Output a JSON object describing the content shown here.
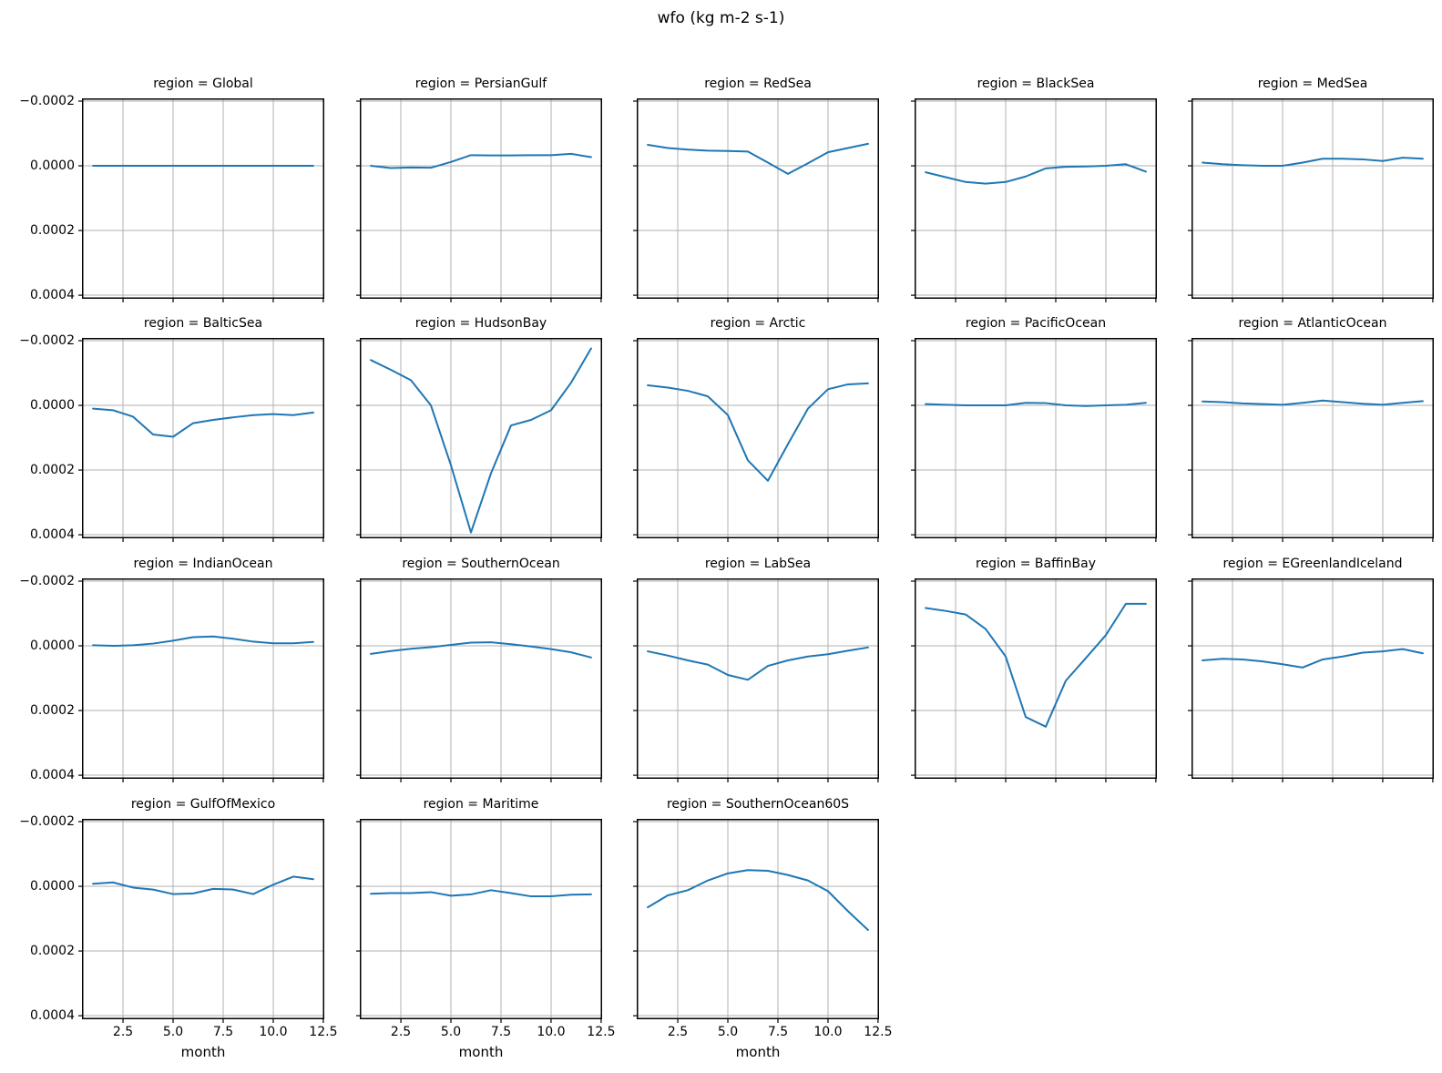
{
  "figure": {
    "title": "wfo (kg m-2 s-1)"
  },
  "chart_data": {
    "type": "line",
    "title": "wfo (kg m-2 s-1)",
    "facet_by": "region",
    "xlabel": "month",
    "x": [
      1,
      2,
      3,
      4,
      5,
      6,
      7,
      8,
      9,
      10,
      11,
      12
    ],
    "xlim": [
      0.45,
      12.55
    ],
    "xticks": [
      2.5,
      5.0,
      7.5,
      10.0,
      12.5
    ],
    "xtick_labels": [
      "2.5",
      "5.0",
      "7.5",
      "10.0",
      "12.5"
    ],
    "ylim": {
      "top": -0.0002085,
      "bottom": 0.000411
    },
    "y_axis_inverted": true,
    "yticks": [
      -0.0002,
      0.0,
      0.0002,
      0.0004
    ],
    "ytick_labels": [
      "−0.0002",
      "0.0000",
      "0.0002",
      "0.0004"
    ],
    "grid": true,
    "legend": "none",
    "line_color": "#1f77b4",
    "grid_color": "#b0b0b0",
    "grid_layout": {
      "rows": 4,
      "cols": 5,
      "facets_in_last_row": 3
    },
    "facets": [
      {
        "region": "Global",
        "title": "region = Global",
        "values": [
          0,
          0,
          0,
          0,
          0,
          0,
          0,
          0,
          0,
          0,
          0,
          0
        ]
      },
      {
        "region": "PersianGulf",
        "title": "region = PersianGulf",
        "values": [
          0,
          7e-06,
          5e-06,
          6e-06,
          -1.2e-05,
          -3.3e-05,
          -3.2e-05,
          -3.2e-05,
          -3.3e-05,
          -3.3e-05,
          -3.7e-05,
          -2.7e-05
        ]
      },
      {
        "region": "RedSea",
        "title": "region = RedSea",
        "values": [
          -6.5e-05,
          -5.5e-05,
          -5e-05,
          -4.7e-05,
          -4.6e-05,
          -4.4e-05,
          -1e-05,
          2.5e-05,
          -8e-06,
          -4.2e-05,
          -5.5e-05,
          -6.8e-05
        ]
      },
      {
        "region": "BlackSea",
        "title": "region = BlackSea",
        "values": [
          2e-05,
          3.5e-05,
          5e-05,
          5.5e-05,
          5e-05,
          3.3e-05,
          8e-06,
          3e-06,
          2e-06,
          0,
          -5e-06,
          1.8e-05
        ]
      },
      {
        "region": "MedSea",
        "title": "region = MedSea",
        "values": [
          -1e-05,
          -5e-06,
          -2e-06,
          0,
          0,
          -1e-05,
          -2.2e-05,
          -2.2e-05,
          -2e-05,
          -1.5e-05,
          -2.5e-05,
          -2.2e-05
        ]
      },
      {
        "region": "BalticSea",
        "title": "region = BalticSea",
        "values": [
          1e-05,
          1.5e-05,
          3.5e-05,
          9e-05,
          9.7e-05,
          5.5e-05,
          4.5e-05,
          3.7e-05,
          3e-05,
          2.7e-05,
          3e-05,
          2.2e-05
        ]
      },
      {
        "region": "HudsonBay",
        "title": "region = HudsonBay",
        "values": [
          -0.00014,
          -0.00011,
          -7.8e-05,
          0,
          0.000185,
          0.000393,
          0.00021,
          6.2e-05,
          4.5e-05,
          1.5e-05,
          -7e-05,
          -0.000176
        ]
      },
      {
        "region": "Arctic",
        "title": "region = Arctic",
        "values": [
          -6.2e-05,
          -5.5e-05,
          -4.5e-05,
          -2.8e-05,
          3e-05,
          0.00017,
          0.000233,
          0.00012,
          1e-05,
          -5e-05,
          -6.5e-05,
          -6.8e-05
        ]
      },
      {
        "region": "PacificOcean",
        "title": "region = PacificOcean",
        "values": [
          -4e-06,
          -2e-06,
          0,
          0,
          0,
          -8e-06,
          -7e-06,
          0,
          2e-06,
          0,
          -2e-06,
          -8e-06
        ]
      },
      {
        "region": "AtlanticOcean",
        "title": "region = AtlanticOcean",
        "values": [
          -1.2e-05,
          -1e-05,
          -6e-06,
          -4e-06,
          -2e-06,
          -8e-06,
          -1.5e-05,
          -1e-05,
          -5e-06,
          -2e-06,
          -8e-06,
          -1.3e-05
        ]
      },
      {
        "region": "IndianOcean",
        "title": "region = IndianOcean",
        "values": [
          -2e-06,
          0,
          -2e-06,
          -7e-06,
          -1.6e-05,
          -2.7e-05,
          -2.9e-05,
          -2.2e-05,
          -1.3e-05,
          -8e-06,
          -8e-06,
          -1.2e-05
        ]
      },
      {
        "region": "SouthernOcean",
        "title": "region = SouthernOcean",
        "values": [
          2.5e-05,
          1.6e-05,
          9e-06,
          4e-06,
          -3e-06,
          -1e-05,
          -1.1e-05,
          -5e-06,
          2e-06,
          1e-05,
          2e-05,
          3.6e-05
        ]
      },
      {
        "region": "LabSea",
        "title": "region = LabSea",
        "values": [
          1.7e-05,
          3e-05,
          4.5e-05,
          5.8e-05,
          9e-05,
          0.000105,
          6.2e-05,
          4.5e-05,
          3.3e-05,
          2.6e-05,
          1.5e-05,
          5e-06
        ]
      },
      {
        "region": "BaffinBay",
        "title": "region = BaffinBay",
        "values": [
          -0.000117,
          -0.000108,
          -9.7e-05,
          -5.2e-05,
          3.3e-05,
          0.00022,
          0.00025,
          0.000108,
          3.8e-05,
          -3.3e-05,
          -0.00013,
          -0.00013
        ]
      },
      {
        "region": "EGreenlandIceland",
        "title": "region = EGreenlandIceland",
        "values": [
          4.5e-05,
          4e-05,
          4.2e-05,
          4.8e-05,
          5.7e-05,
          6.7e-05,
          4.2e-05,
          3.3e-05,
          2.1e-05,
          1.7e-05,
          1e-05,
          2.3e-05
        ]
      },
      {
        "region": "GulfOfMexico",
        "title": "region = GulfOfMexico",
        "values": [
          -8e-06,
          -1.2e-05,
          4e-06,
          1e-05,
          2.4e-05,
          2.2e-05,
          8e-06,
          1e-05,
          2.4e-05,
          -5e-06,
          -3e-05,
          -2.2e-05
        ]
      },
      {
        "region": "Maritime",
        "title": "region = Maritime",
        "values": [
          2.3e-05,
          2.1e-05,
          2.1e-05,
          1.8e-05,
          2.9e-05,
          2.5e-05,
          1.2e-05,
          2.1e-05,
          3.1e-05,
          3.1e-05,
          2.6e-05,
          2.5e-05
        ]
      },
      {
        "region": "SouthernOcean60S",
        "title": "region = SouthernOcean60S",
        "values": [
          6.5e-05,
          2.8e-05,
          1.2e-05,
          -1.8e-05,
          -4e-05,
          -5e-05,
          -4.8e-05,
          -3.5e-05,
          -1.8e-05,
          1.5e-05,
          7.7e-05,
          0.000135
        ]
      }
    ]
  }
}
